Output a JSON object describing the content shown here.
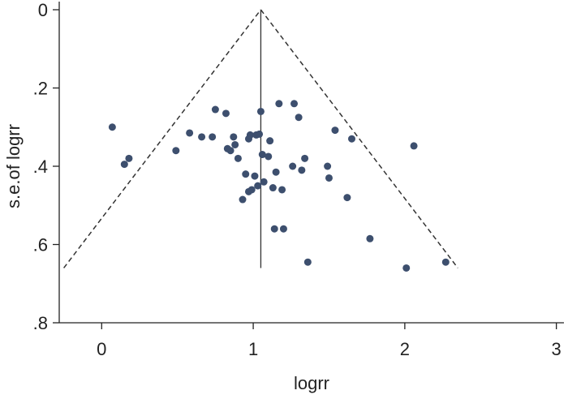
{
  "chart_data": {
    "type": "scatter",
    "title": "",
    "xlabel": "logrr",
    "ylabel": "s.e.of logrr",
    "xlim": [
      -0.28,
      3.05
    ],
    "ylim": [
      0,
      0.8
    ],
    "y_reversed": true,
    "grid": false,
    "x_ticks": [
      0,
      1,
      2,
      3
    ],
    "x_tick_labels": [
      "0",
      "1",
      "2",
      "3"
    ],
    "y_ticks": [
      0,
      0.2,
      0.4,
      0.6,
      0.8
    ],
    "y_tick_labels": [
      "0",
      ".2",
      ".4",
      ".6",
      ".8"
    ],
    "pooled_estimate_line": {
      "x": 1.05,
      "y_from": 0,
      "y_to": 0.66
    },
    "pseudo_ci_limits": {
      "apex": [
        1.05,
        0
      ],
      "left_end": [
        -0.25,
        0.66
      ],
      "right_end": [
        2.35,
        0.66
      ],
      "style": "dashed"
    },
    "colors": {
      "points": "#3d4f6e",
      "lines": "#333333"
    },
    "x": [
      0.07,
      0.15,
      0.18,
      0.49,
      0.58,
      0.66,
      0.73,
      0.75,
      0.82,
      0.83,
      0.85,
      0.87,
      0.88,
      0.9,
      0.93,
      0.95,
      0.97,
      0.97,
      0.98,
      0.99,
      1.01,
      1.02,
      1.03,
      1.04,
      1.05,
      1.06,
      1.07,
      1.1,
      1.11,
      1.13,
      1.14,
      1.15,
      1.17,
      1.19,
      1.2,
      1.26,
      1.27,
      1.3,
      1.32,
      1.34,
      1.36,
      1.49,
      1.5,
      1.54,
      1.62,
      1.65,
      1.77,
      2.01,
      2.06,
      2.27
    ],
    "y": [
      0.3,
      0.395,
      0.38,
      0.36,
      0.315,
      0.325,
      0.325,
      0.255,
      0.265,
      0.355,
      0.36,
      0.325,
      0.345,
      0.38,
      0.485,
      0.42,
      0.465,
      0.33,
      0.32,
      0.46,
      0.425,
      0.32,
      0.45,
      0.318,
      0.26,
      0.37,
      0.44,
      0.375,
      0.335,
      0.455,
      0.56,
      0.415,
      0.24,
      0.46,
      0.56,
      0.4,
      0.24,
      0.275,
      0.41,
      0.38,
      0.645,
      0.4,
      0.43,
      0.308,
      0.48,
      0.33,
      0.585,
      0.66,
      0.348,
      0.645
    ]
  }
}
